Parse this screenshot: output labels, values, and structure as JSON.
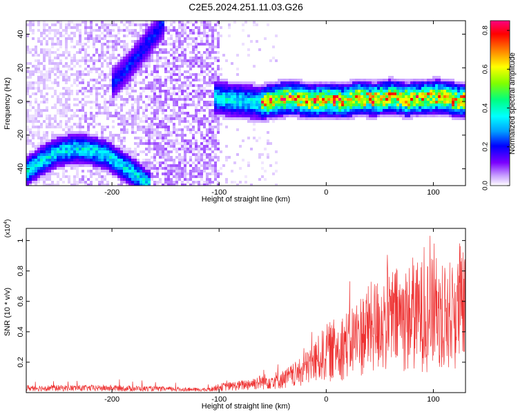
{
  "title": "C2E5.2024.251.11.03.G26",
  "chart_data": [
    {
      "type": "heatmap",
      "xlabel": "Height of straight line (km)",
      "ylabel": "Frequency (Hz)",
      "xlim": [
        -280,
        130
      ],
      "ylim": [
        -50,
        48
      ],
      "xticks": [
        -200,
        -100,
        0,
        100
      ],
      "yticks": [
        -40,
        -20,
        0,
        20,
        40
      ],
      "grid": false,
      "colorbar": {
        "label": "Normalized spectral amplitude",
        "range": [
          0,
          0.85
        ],
        "ticks": [
          "0.0",
          "0.2",
          "0.4",
          "0.6",
          "0.8"
        ],
        "colormap": [
          "#ffffff",
          "#c8a0ff",
          "#7a00ff",
          "#0000ff",
          "#00a0ff",
          "#00ffff",
          "#00ff80",
          "#80ff00",
          "#ffff00",
          "#ff8000",
          "#ff0000",
          "#ff0080"
        ]
      },
      "ridges": [
        {
          "x": [
            -280,
            -265,
            -250,
            -235,
            -220,
            -205,
            -190,
            -175,
            -165
          ],
          "y": [
            -42,
            -35,
            -30,
            -28,
            -29,
            -32,
            -38,
            -45,
            -50
          ]
        },
        {
          "x": [
            -105,
            -90,
            -75,
            -60,
            -45,
            -30,
            -15,
            0,
            15,
            30,
            45,
            60,
            75,
            90,
            105,
            120,
            130
          ],
          "y": [
            2,
            1,
            0,
            -1,
            1,
            2,
            0,
            1,
            0,
            2,
            1,
            3,
            1,
            2,
            3,
            1,
            0
          ]
        },
        {
          "x": [
            -200,
            -185,
            -170,
            -160,
            -150
          ],
          "y": [
            10,
            20,
            32,
            40,
            48
          ]
        }
      ]
    },
    {
      "type": "line",
      "xlabel": "Height of straight line (km)",
      "ylabel": "SNR (10 * v/v)",
      "y_multiplier": "(x10^4)",
      "y_multiplier_base": "(x10",
      "y_multiplier_exp": "4",
      "y_multiplier_close": ")",
      "xlim": [
        -280,
        130
      ],
      "ylim": [
        0,
        1.08
      ],
      "xticks": [
        -200,
        -100,
        0,
        100
      ],
      "yticks": [
        0.2,
        0.4,
        0.6,
        0.8,
        1
      ],
      "series_color": "#ee3333",
      "envelope": {
        "x": [
          -280,
          -200,
          -110,
          -100,
          -80,
          -60,
          -40,
          -25,
          -10,
          0,
          20,
          40,
          60,
          80,
          95,
          110,
          130
        ],
        "upper": [
          0.05,
          0.05,
          0.03,
          0.06,
          0.08,
          0.12,
          0.15,
          0.22,
          0.35,
          0.45,
          0.55,
          0.72,
          0.82,
          0.85,
          0.9,
          0.85,
          0.95
        ],
        "peak": [
          0.08,
          0.09,
          0.06,
          0.08,
          0.11,
          0.15,
          0.2,
          0.28,
          0.45,
          0.6,
          0.72,
          0.85,
          0.92,
          0.98,
          1.08,
          0.95,
          1.0
        ]
      }
    }
  ]
}
